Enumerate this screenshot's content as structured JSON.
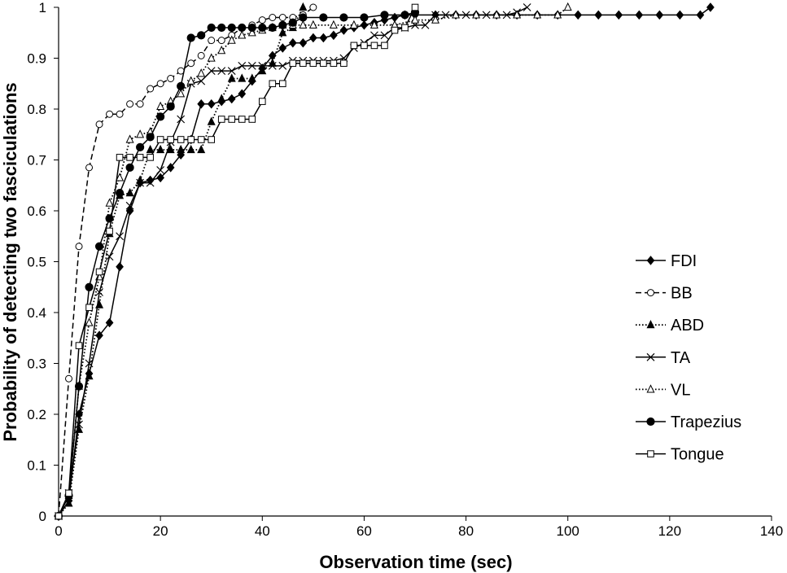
{
  "chart_data": {
    "type": "line",
    "title": "",
    "xlabel": "Observation time (sec)",
    "ylabel": "Probability of detecting two fasciculations",
    "xlim": [
      0,
      140
    ],
    "ylim": [
      0,
      1
    ],
    "xticks": [
      0,
      20,
      40,
      60,
      80,
      100,
      120,
      140
    ],
    "xtick_labels": [
      "0",
      "20",
      "40",
      "60",
      "80",
      "100",
      "120",
      "140"
    ],
    "yticks": [
      0,
      0.1,
      0.2,
      0.3,
      0.4,
      0.5,
      0.6,
      0.7,
      0.8,
      0.9,
      1
    ],
    "ytick_labels": [
      "0",
      "0.1",
      "0.2",
      "0.3",
      "0.4",
      "0.5",
      "0.6",
      "0.7",
      "0.8",
      "0.9",
      "1"
    ],
    "grid": false,
    "legend_position": "right",
    "series": [
      {
        "name": "FDI",
        "marker": "diamond",
        "dash": "solid",
        "fill": "#000000",
        "points": [
          [
            0,
            0
          ],
          [
            2,
            0.03
          ],
          [
            4,
            0.2
          ],
          [
            6,
            0.28
          ],
          [
            8,
            0.355
          ],
          [
            10,
            0.38
          ],
          [
            12,
            0.49
          ],
          [
            14,
            0.6
          ],
          [
            16,
            0.655
          ],
          [
            18,
            0.66
          ],
          [
            20,
            0.665
          ],
          [
            22,
            0.685
          ],
          [
            24,
            0.71
          ],
          [
            26,
            0.74
          ],
          [
            28,
            0.81
          ],
          [
            30,
            0.81
          ],
          [
            32,
            0.815
          ],
          [
            34,
            0.82
          ],
          [
            36,
            0.83
          ],
          [
            38,
            0.855
          ],
          [
            40,
            0.88
          ],
          [
            42,
            0.905
          ],
          [
            44,
            0.92
          ],
          [
            46,
            0.93
          ],
          [
            48,
            0.93
          ],
          [
            50,
            0.94
          ],
          [
            52,
            0.94
          ],
          [
            54,
            0.945
          ],
          [
            56,
            0.955
          ],
          [
            58,
            0.96
          ],
          [
            60,
            0.965
          ],
          [
            62,
            0.97
          ],
          [
            64,
            0.975
          ],
          [
            66,
            0.98
          ],
          [
            68,
            0.985
          ],
          [
            70,
            0.985
          ],
          [
            74,
            0.985
          ],
          [
            78,
            0.985
          ],
          [
            82,
            0.985
          ],
          [
            86,
            0.985
          ],
          [
            90,
            0.985
          ],
          [
            94,
            0.985
          ],
          [
            98,
            0.985
          ],
          [
            102,
            0.985
          ],
          [
            106,
            0.985
          ],
          [
            110,
            0.985
          ],
          [
            114,
            0.985
          ],
          [
            118,
            0.985
          ],
          [
            122,
            0.985
          ],
          [
            126,
            0.985
          ],
          [
            128,
            1
          ]
        ]
      },
      {
        "name": "BB",
        "marker": "circle-open",
        "dash": "dashed",
        "fill": "#ffffff",
        "points": [
          [
            0,
            0
          ],
          [
            2,
            0.27
          ],
          [
            4,
            0.53
          ],
          [
            6,
            0.685
          ],
          [
            8,
            0.77
          ],
          [
            10,
            0.79
          ],
          [
            12,
            0.79
          ],
          [
            14,
            0.81
          ],
          [
            16,
            0.81
          ],
          [
            18,
            0.84
          ],
          [
            20,
            0.85
          ],
          [
            22,
            0.86
          ],
          [
            24,
            0.875
          ],
          [
            26,
            0.89
          ],
          [
            28,
            0.905
          ],
          [
            30,
            0.935
          ],
          [
            32,
            0.935
          ],
          [
            34,
            0.945
          ],
          [
            36,
            0.96
          ],
          [
            38,
            0.965
          ],
          [
            40,
            0.975
          ],
          [
            42,
            0.98
          ],
          [
            44,
            0.98
          ],
          [
            46,
            0.98
          ],
          [
            48,
            0.985
          ],
          [
            50,
            1
          ]
        ]
      },
      {
        "name": "ABD",
        "marker": "triangle-filled",
        "dash": "dotted",
        "fill": "#000000",
        "points": [
          [
            0,
            0
          ],
          [
            2,
            0.025
          ],
          [
            4,
            0.17
          ],
          [
            6,
            0.275
          ],
          [
            8,
            0.415
          ],
          [
            10,
            0.555
          ],
          [
            12,
            0.63
          ],
          [
            14,
            0.635
          ],
          [
            16,
            0.66
          ],
          [
            18,
            0.72
          ],
          [
            20,
            0.72
          ],
          [
            22,
            0.72
          ],
          [
            24,
            0.72
          ],
          [
            26,
            0.72
          ],
          [
            28,
            0.72
          ],
          [
            30,
            0.775
          ],
          [
            32,
            0.82
          ],
          [
            34,
            0.86
          ],
          [
            36,
            0.86
          ],
          [
            38,
            0.86
          ],
          [
            40,
            0.875
          ],
          [
            42,
            0.89
          ],
          [
            44,
            0.95
          ],
          [
            46,
            0.96
          ],
          [
            48,
            1
          ]
        ]
      },
      {
        "name": "TA",
        "marker": "x",
        "dash": "solid",
        "fill": "none",
        "points": [
          [
            0,
            0
          ],
          [
            2,
            0.045
          ],
          [
            4,
            0.18
          ],
          [
            6,
            0.3
          ],
          [
            8,
            0.44
          ],
          [
            10,
            0.51
          ],
          [
            12,
            0.55
          ],
          [
            14,
            0.61
          ],
          [
            16,
            0.655
          ],
          [
            18,
            0.655
          ],
          [
            20,
            0.68
          ],
          [
            22,
            0.735
          ],
          [
            24,
            0.78
          ],
          [
            26,
            0.85
          ],
          [
            28,
            0.855
          ],
          [
            30,
            0.875
          ],
          [
            32,
            0.875
          ],
          [
            34,
            0.875
          ],
          [
            36,
            0.885
          ],
          [
            38,
            0.885
          ],
          [
            40,
            0.885
          ],
          [
            42,
            0.885
          ],
          [
            44,
            0.885
          ],
          [
            46,
            0.895
          ],
          [
            48,
            0.895
          ],
          [
            50,
            0.895
          ],
          [
            52,
            0.895
          ],
          [
            54,
            0.895
          ],
          [
            56,
            0.9
          ],
          [
            58,
            0.92
          ],
          [
            60,
            0.93
          ],
          [
            62,
            0.945
          ],
          [
            64,
            0.945
          ],
          [
            66,
            0.96
          ],
          [
            68,
            0.96
          ],
          [
            70,
            0.965
          ],
          [
            72,
            0.965
          ],
          [
            74,
            0.985
          ],
          [
            76,
            0.985
          ],
          [
            80,
            0.985
          ],
          [
            84,
            0.985
          ],
          [
            88,
            0.985
          ],
          [
            90,
            0.99
          ],
          [
            92,
            1
          ]
        ]
      },
      {
        "name": "VL",
        "marker": "triangle-open",
        "dash": "dotted",
        "fill": "#ffffff",
        "points": [
          [
            0,
            0
          ],
          [
            2,
            0.04
          ],
          [
            4,
            0.255
          ],
          [
            6,
            0.38
          ],
          [
            8,
            0.47
          ],
          [
            10,
            0.615
          ],
          [
            12,
            0.665
          ],
          [
            14,
            0.74
          ],
          [
            16,
            0.75
          ],
          [
            18,
            0.755
          ],
          [
            20,
            0.805
          ],
          [
            22,
            0.815
          ],
          [
            24,
            0.83
          ],
          [
            26,
            0.855
          ],
          [
            28,
            0.87
          ],
          [
            30,
            0.9
          ],
          [
            32,
            0.915
          ],
          [
            34,
            0.935
          ],
          [
            36,
            0.945
          ],
          [
            38,
            0.95
          ],
          [
            40,
            0.955
          ],
          [
            42,
            0.96
          ],
          [
            44,
            0.965
          ],
          [
            46,
            0.965
          ],
          [
            48,
            0.965
          ],
          [
            50,
            0.965
          ],
          [
            54,
            0.965
          ],
          [
            58,
            0.965
          ],
          [
            62,
            0.965
          ],
          [
            66,
            0.965
          ],
          [
            70,
            0.975
          ],
          [
            74,
            0.975
          ],
          [
            78,
            0.985
          ],
          [
            82,
            0.985
          ],
          [
            86,
            0.985
          ],
          [
            90,
            0.985
          ],
          [
            94,
            0.985
          ],
          [
            98,
            0.985
          ],
          [
            100,
            1
          ]
        ]
      },
      {
        "name": "Trapezius",
        "marker": "circle-filled",
        "dash": "solid",
        "fill": "#000000",
        "points": [
          [
            0,
            0
          ],
          [
            2,
            0.04
          ],
          [
            4,
            0.255
          ],
          [
            6,
            0.45
          ],
          [
            8,
            0.53
          ],
          [
            10,
            0.585
          ],
          [
            12,
            0.635
          ],
          [
            14,
            0.685
          ],
          [
            16,
            0.725
          ],
          [
            18,
            0.745
          ],
          [
            20,
            0.785
          ],
          [
            22,
            0.805
          ],
          [
            24,
            0.845
          ],
          [
            26,
            0.94
          ],
          [
            28,
            0.945
          ],
          [
            30,
            0.96
          ],
          [
            32,
            0.96
          ],
          [
            34,
            0.96
          ],
          [
            36,
            0.96
          ],
          [
            38,
            0.96
          ],
          [
            40,
            0.96
          ],
          [
            42,
            0.96
          ],
          [
            44,
            0.965
          ],
          [
            46,
            0.97
          ],
          [
            48,
            0.98
          ],
          [
            52,
            0.98
          ],
          [
            56,
            0.98
          ],
          [
            60,
            0.98
          ],
          [
            64,
            0.985
          ],
          [
            68,
            0.985
          ],
          [
            70,
            0.99
          ]
        ]
      },
      {
        "name": "Tongue",
        "marker": "square-open",
        "dash": "solid",
        "fill": "#ffffff",
        "points": [
          [
            0,
            0
          ],
          [
            2,
            0.045
          ],
          [
            4,
            0.335
          ],
          [
            6,
            0.41
          ],
          [
            8,
            0.48
          ],
          [
            10,
            0.56
          ],
          [
            12,
            0.705
          ],
          [
            14,
            0.705
          ],
          [
            16,
            0.705
          ],
          [
            18,
            0.705
          ],
          [
            20,
            0.74
          ],
          [
            22,
            0.74
          ],
          [
            24,
            0.74
          ],
          [
            26,
            0.74
          ],
          [
            28,
            0.74
          ],
          [
            30,
            0.74
          ],
          [
            32,
            0.78
          ],
          [
            34,
            0.78
          ],
          [
            36,
            0.78
          ],
          [
            38,
            0.78
          ],
          [
            40,
            0.815
          ],
          [
            42,
            0.85
          ],
          [
            44,
            0.85
          ],
          [
            46,
            0.89
          ],
          [
            48,
            0.89
          ],
          [
            50,
            0.89
          ],
          [
            52,
            0.89
          ],
          [
            54,
            0.89
          ],
          [
            56,
            0.89
          ],
          [
            58,
            0.925
          ],
          [
            60,
            0.925
          ],
          [
            62,
            0.925
          ],
          [
            64,
            0.925
          ],
          [
            66,
            0.955
          ],
          [
            68,
            0.96
          ],
          [
            70,
            1
          ]
        ]
      }
    ]
  }
}
